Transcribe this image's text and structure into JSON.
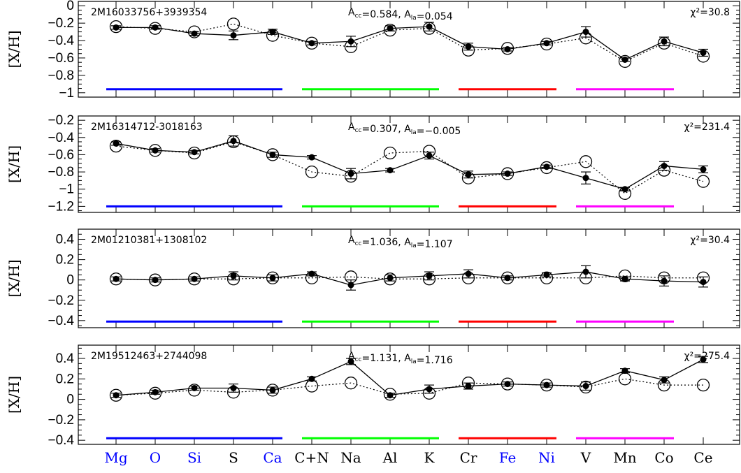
{
  "chart_data": {
    "type": "line",
    "categories": [
      "Mg",
      "O",
      "Si",
      "S",
      "Ca",
      "C+N",
      "Na",
      "Al",
      "K",
      "Cr",
      "Fe",
      "Ni",
      "V",
      "Mn",
      "Co",
      "Ce"
    ],
    "category_colors": [
      "#0000ff",
      "#0000ff",
      "#0000ff",
      "#000000",
      "#0000ff",
      "#000000",
      "#000000",
      "#000000",
      "#000000",
      "#000000",
      "#0000ff",
      "#0000ff",
      "#000000",
      "#000000",
      "#000000",
      "#000000"
    ],
    "group_bars": [
      {
        "from": "Mg",
        "to": "Ca",
        "color": "#0000ff"
      },
      {
        "from": "C+N",
        "to": "K",
        "color": "#00ff00"
      },
      {
        "from": "Cr",
        "to": "Ni",
        "color": "#ff0000"
      },
      {
        "from": "V",
        "to": "Co",
        "color": "#ff00ff"
      }
    ],
    "ylabel": "[X/H]",
    "panels": [
      {
        "star": "2M16033756+3939354",
        "acc_label": "A",
        "acc_sub": "cc",
        "acc_value": "=0.584,",
        "ala_label": "A",
        "ala_sub": "la",
        "ala_value": "=0.054",
        "chi2_label": "χ²=30.8",
        "ylim": [
          -1.05,
          0.05
        ],
        "yticks": [
          0,
          -0.2,
          -0.4,
          -0.6,
          -0.8,
          -1
        ],
        "ytick_labels": [
          "0",
          "−0.2",
          "−0.4",
          "−0.6",
          "−0.8",
          "−1"
        ],
        "bar_y": -0.96,
        "observed": [
          -0.25,
          -0.25,
          -0.32,
          -0.34,
          -0.3,
          -0.43,
          -0.41,
          -0.26,
          -0.24,
          -0.47,
          -0.5,
          -0.43,
          -0.3,
          -0.62,
          -0.41,
          -0.54
        ],
        "observed_err": [
          0.02,
          0.02,
          0.02,
          0.05,
          0.03,
          0.02,
          0.06,
          0.03,
          0.05,
          0.04,
          0.02,
          0.02,
          0.06,
          0.02,
          0.05,
          0.04
        ],
        "model": [
          -0.24,
          -0.26,
          -0.3,
          -0.21,
          -0.34,
          -0.43,
          -0.47,
          -0.28,
          -0.26,
          -0.51,
          -0.49,
          -0.44,
          -0.37,
          -0.64,
          -0.43,
          -0.58
        ]
      },
      {
        "star": "2M16314712-3018163",
        "acc_label": "A",
        "acc_sub": "cc",
        "acc_value": "=0.307,",
        "ala_label": "A",
        "ala_sub": "la",
        "ala_value": "=−0.005",
        "chi2_label": "χ²=231.4",
        "ylim": [
          -1.27,
          -0.15
        ],
        "yticks": [
          -0.2,
          -0.4,
          -0.6,
          -0.8,
          -1,
          -1.2
        ],
        "ytick_labels": [
          "−0.2",
          "−0.4",
          "−0.6",
          "−0.8",
          "−1",
          "−1.2"
        ],
        "bar_y": -1.2,
        "observed": [
          -0.47,
          -0.55,
          -0.57,
          -0.44,
          -0.6,
          -0.63,
          -0.82,
          -0.78,
          -0.61,
          -0.83,
          -0.82,
          -0.74,
          -0.87,
          -1.0,
          -0.73,
          -0.77
        ],
        "observed_err": [
          0.02,
          0.02,
          0.02,
          0.06,
          0.03,
          0.02,
          0.06,
          0.02,
          0.04,
          0.04,
          0.02,
          0.02,
          0.07,
          0.02,
          0.05,
          0.04
        ],
        "model": [
          -0.5,
          -0.55,
          -0.58,
          -0.45,
          -0.6,
          -0.8,
          -0.85,
          -0.58,
          -0.56,
          -0.87,
          -0.82,
          -0.75,
          -0.68,
          -1.05,
          -0.78,
          -0.91
        ]
      },
      {
        "star": "2M01210381+1308102",
        "acc_label": "A",
        "acc_sub": "cc",
        "acc_value": "=1.036,",
        "ala_label": "A",
        "ala_sub": "la",
        "ala_value": "=1.107",
        "chi2_label": "χ²=30.4",
        "ylim": [
          -0.47,
          0.5
        ],
        "yticks": [
          0.4,
          0.2,
          0,
          -0.2,
          -0.4
        ],
        "ytick_labels": [
          "0.4",
          "0.2",
          "0",
          "−0.2",
          "−0.4"
        ],
        "bar_y": -0.41,
        "observed": [
          0.01,
          0.0,
          0.01,
          0.04,
          0.02,
          0.06,
          -0.05,
          0.02,
          0.04,
          0.06,
          0.02,
          0.05,
          0.08,
          0.01,
          -0.01,
          -0.02
        ],
        "observed_err": [
          0.02,
          0.02,
          0.02,
          0.04,
          0.03,
          0.02,
          0.05,
          0.03,
          0.04,
          0.04,
          0.02,
          0.02,
          0.06,
          0.02,
          0.05,
          0.05
        ],
        "model": [
          0.01,
          0.0,
          0.01,
          0.01,
          0.02,
          0.02,
          0.03,
          0.01,
          0.01,
          0.02,
          0.02,
          0.02,
          0.02,
          0.04,
          0.02,
          0.02
        ]
      },
      {
        "star": "2M19512463+2744098",
        "acc_label": "A",
        "acc_sub": "cc",
        "acc_value": "=1.131,",
        "ala_label": "A",
        "ala_sub": "la",
        "ala_value": "=1.716",
        "chi2_label": "χ²=275.4",
        "ylim": [
          -0.44,
          0.53
        ],
        "yticks": [
          0.4,
          0.2,
          0,
          -0.2,
          -0.4
        ],
        "ytick_labels": [
          "0.4",
          "0.2",
          "0",
          "−0.2",
          "−0.4"
        ],
        "bar_y": -0.38,
        "observed": [
          0.04,
          0.07,
          0.11,
          0.11,
          0.09,
          0.2,
          0.37,
          0.04,
          0.1,
          0.13,
          0.15,
          0.14,
          0.13,
          0.28,
          0.19,
          0.39
        ],
        "observed_err": [
          0.02,
          0.02,
          0.02,
          0.04,
          0.03,
          0.02,
          0.03,
          0.02,
          0.04,
          0.03,
          0.02,
          0.02,
          0.04,
          0.02,
          0.03,
          0.03
        ],
        "model": [
          0.04,
          0.06,
          0.09,
          0.07,
          0.09,
          0.13,
          0.16,
          0.05,
          0.06,
          0.16,
          0.15,
          0.14,
          0.12,
          0.2,
          0.14,
          0.14
        ]
      }
    ]
  }
}
